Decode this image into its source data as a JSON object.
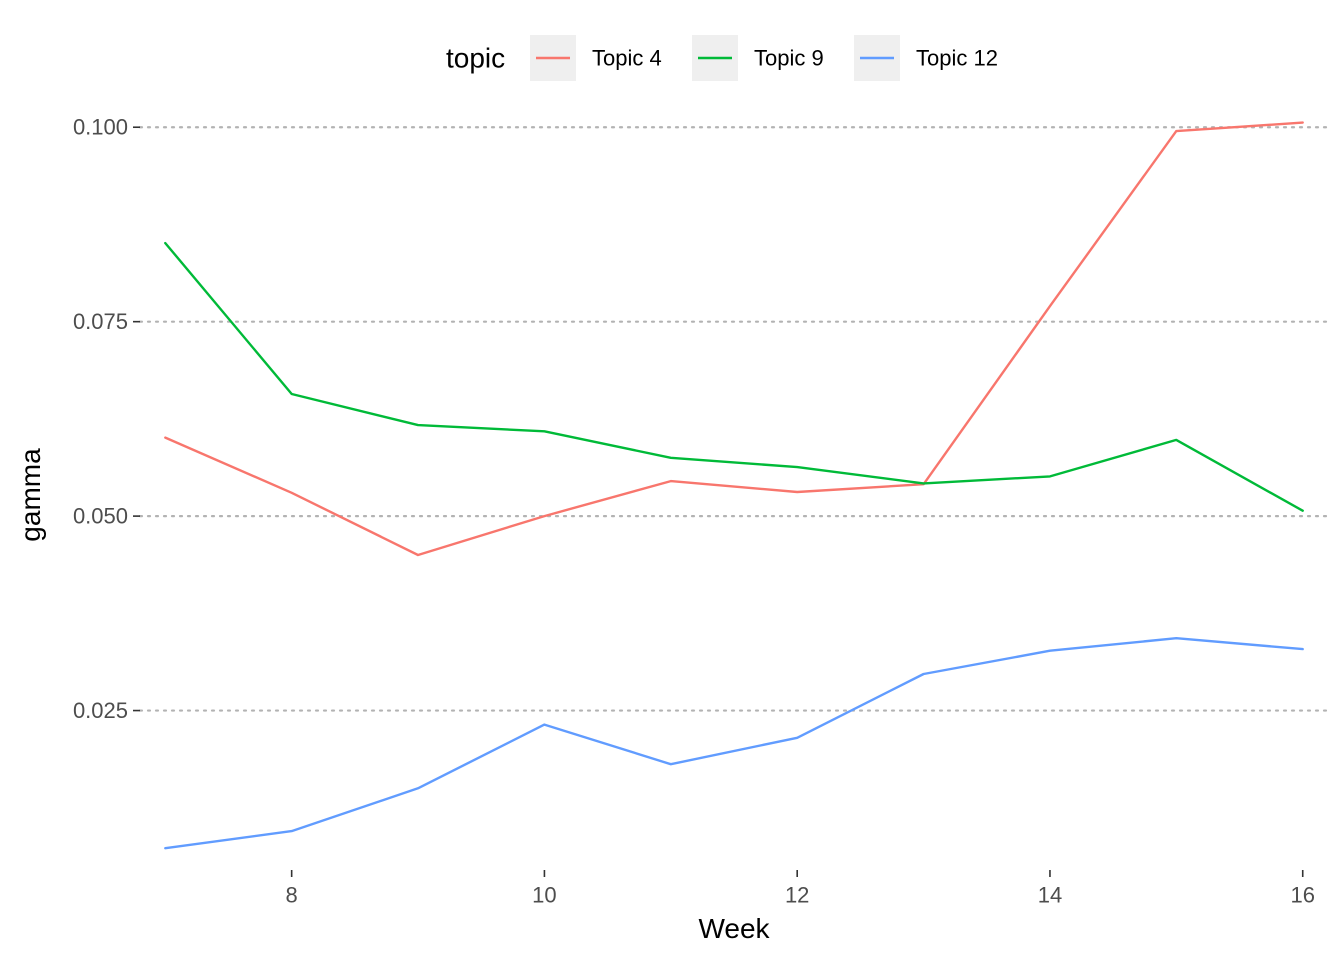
{
  "chart_data": {
    "type": "line",
    "xlabel": "Week",
    "ylabel": "gamma",
    "legend_title": "topic",
    "legend_position": "top",
    "grid": "horizontal-major-dotted",
    "xlim": [
      6.8,
      16.2
    ],
    "ylim": [
      0.0045,
      0.1035
    ],
    "x_ticks": [
      8,
      10,
      12,
      14,
      16
    ],
    "y_ticks": [
      0.025,
      0.05,
      0.075,
      0.1
    ],
    "y_tick_labels": [
      "0.025",
      "0.050",
      "0.075",
      "0.100"
    ],
    "x": [
      7,
      8,
      9,
      10,
      11,
      12,
      13,
      14,
      15,
      16
    ],
    "series": [
      {
        "name": "Topic 4",
        "color": "#F8766D",
        "values": [
          0.0601,
          0.053,
          0.045,
          0.05,
          0.0545,
          0.0531,
          0.0541,
          0.077,
          0.0995,
          0.1006
        ]
      },
      {
        "name": "Topic 9",
        "color": "#00BA38",
        "values": [
          0.0851,
          0.0657,
          0.0617,
          0.0609,
          0.0575,
          0.0563,
          0.0542,
          0.0551,
          0.0598,
          0.0507
        ]
      },
      {
        "name": "Topic 12",
        "color": "#619CFF",
        "values": [
          0.0073,
          0.0095,
          0.015,
          0.0232,
          0.0181,
          0.0215,
          0.0297,
          0.0327,
          0.0343,
          0.0329
        ]
      }
    ]
  }
}
